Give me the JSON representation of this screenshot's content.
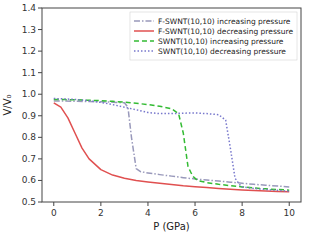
{
  "chart_data": {
    "type": "line",
    "x_label": "P (GPa)",
    "y_label": "V/V₀",
    "xlim": [
      -0.5,
      10.5
    ],
    "ylim": [
      0.5,
      1.4
    ],
    "xticks": [
      0,
      2,
      4,
      6,
      8,
      10
    ],
    "yticks": [
      0.5,
      0.6,
      0.7,
      0.8,
      0.9,
      {
        "value": 1.0,
        "label": "1.0"
      },
      1.1,
      1.2,
      1.3,
      1.4
    ],
    "legend": "upper right",
    "grid": false,
    "series": [
      {
        "name": "F-SWNT(10,10) increasing pressure",
        "color": "#9999bb",
        "line_style": "dashdot",
        "x": [
          0.0,
          0.5,
          1.0,
          1.5,
          2.0,
          2.5,
          3.0,
          3.15,
          3.3,
          3.5,
          3.7,
          4.0,
          4.5,
          5.0,
          5.5,
          6.0,
          6.5,
          7.0,
          7.5,
          8.0,
          8.5,
          9.0,
          9.5,
          10.0
        ],
        "values": [
          0.968,
          0.968,
          0.967,
          0.966,
          0.965,
          0.963,
          0.96,
          0.94,
          0.8,
          0.655,
          0.64,
          0.635,
          0.627,
          0.62,
          0.613,
          0.607,
          0.602,
          0.597,
          0.592,
          0.587,
          0.582,
          0.578,
          0.574,
          0.57
        ]
      },
      {
        "name": "F-SWNT(10,10) decreasing pressure",
        "color": "#e05050",
        "line_style": "solid",
        "x": [
          0.0,
          0.3,
          0.6,
          0.9,
          1.2,
          1.5,
          2.0,
          2.5,
          3.0,
          3.5,
          4.0,
          4.5,
          5.0,
          5.5,
          6.0,
          6.5,
          7.0,
          7.5,
          8.0,
          8.5,
          9.0,
          9.5,
          10.0
        ],
        "values": [
          0.96,
          0.94,
          0.89,
          0.82,
          0.75,
          0.7,
          0.65,
          0.625,
          0.61,
          0.6,
          0.593,
          0.587,
          0.581,
          0.575,
          0.571,
          0.567,
          0.563,
          0.559,
          0.556,
          0.553,
          0.551,
          0.549,
          0.547
        ]
      },
      {
        "name": "SWNT(10,10) increasing pressure",
        "color": "#33bb33",
        "line_style": "dashed",
        "x": [
          0.0,
          0.5,
          1.0,
          1.5,
          2.0,
          2.5,
          3.0,
          3.5,
          4.0,
          4.5,
          5.0,
          5.3,
          5.5,
          5.7,
          5.9,
          6.1,
          6.5,
          7.0,
          7.5,
          8.0,
          8.5,
          9.0,
          9.5,
          10.0
        ],
        "values": [
          0.975,
          0.975,
          0.974,
          0.972,
          0.97,
          0.967,
          0.963,
          0.958,
          0.952,
          0.944,
          0.933,
          0.91,
          0.82,
          0.665,
          0.62,
          0.6,
          0.59,
          0.582,
          0.576,
          0.57,
          0.565,
          0.561,
          0.558,
          0.555
        ]
      },
      {
        "name": "SWNT(10,10) decreasing pressure",
        "color": "#7777cc",
        "line_style": "dotted",
        "x": [
          0.0,
          0.5,
          1.0,
          1.5,
          2.0,
          2.5,
          3.0,
          3.5,
          4.0,
          4.5,
          5.0,
          5.5,
          6.0,
          6.5,
          7.0,
          7.3,
          7.5,
          7.7,
          7.9,
          8.0,
          8.5,
          9.0,
          9.5,
          10.0
        ],
        "values": [
          0.98,
          0.978,
          0.975,
          0.97,
          0.962,
          0.952,
          0.94,
          0.928,
          0.915,
          0.91,
          0.91,
          0.912,
          0.913,
          0.91,
          0.905,
          0.88,
          0.75,
          0.61,
          0.58,
          0.57,
          0.563,
          0.558,
          0.554,
          0.55
        ]
      }
    ]
  }
}
